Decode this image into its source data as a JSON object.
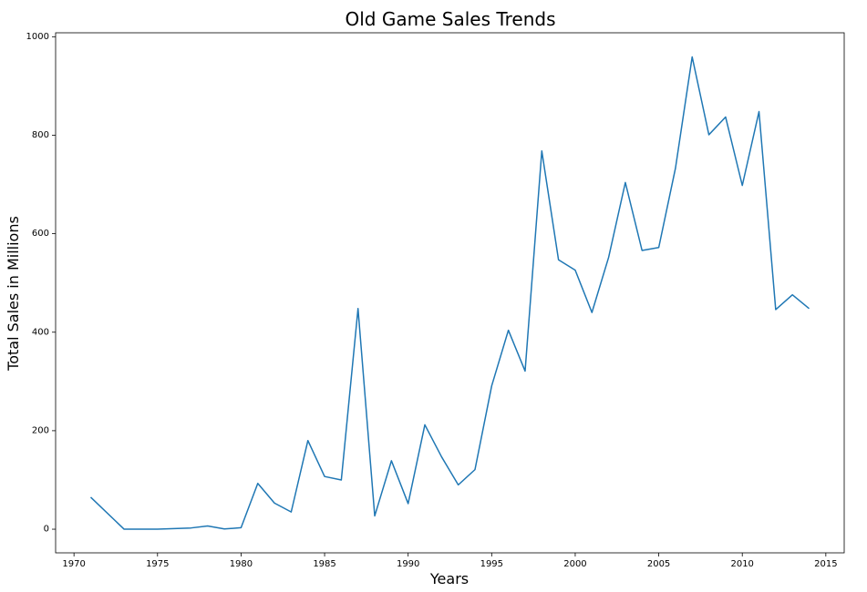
{
  "chart_data": {
    "type": "line",
    "title": "Old Game Sales Trends",
    "xlabel": "Years",
    "ylabel": "Total Sales in Millions",
    "xlim": [
      1968.9,
      2016.1
    ],
    "ylim": [
      -48,
      1008
    ],
    "x_ticks": [
      1970,
      1975,
      1980,
      1985,
      1990,
      1995,
      2000,
      2005,
      2010,
      2015
    ],
    "y_ticks": [
      0,
      200,
      400,
      600,
      800,
      1000
    ],
    "grid": false,
    "legend": "none",
    "color": "#1f77b4",
    "series": [
      {
        "x": [
          1971,
          1973,
          1975,
          1977,
          1978,
          1979,
          1980,
          1981,
          1982,
          1983,
          1984,
          1985,
          1986,
          1987,
          1988,
          1989,
          1990,
          1991,
          1992,
          1993,
          1994,
          1995,
          1996,
          1997,
          1998,
          1999,
          2000,
          2001,
          2002,
          2003,
          2004,
          2005,
          2006,
          2007,
          2008,
          2009,
          2010,
          2011,
          2012,
          2013,
          2014
        ],
        "values": [
          65,
          0,
          0,
          2.5,
          6.5,
          0.5,
          3,
          93,
          53,
          35,
          180,
          107,
          100,
          448,
          27,
          139,
          52,
          212,
          147,
          90,
          121,
          291,
          404,
          321,
          768,
          547,
          526,
          440,
          552,
          704,
          566,
          572,
          733,
          959,
          801,
          837,
          698,
          848,
          446,
          476,
          448
        ]
      }
    ]
  }
}
